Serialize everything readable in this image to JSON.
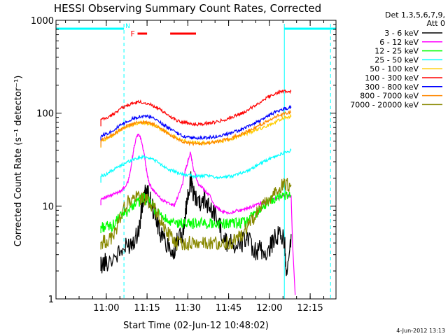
{
  "chart_data": {
    "type": "line",
    "title": "HESSI Observing Summary Count Rates, Corrected",
    "xlabel": "Start Time (02-Jun-12 10:48:02)",
    "ylabel": "Corrected Count Rate (s⁻¹ detector⁻¹)",
    "yscale": "log",
    "ylim": [
      1,
      1000
    ],
    "xlim_minutes": [
      -6.5,
      96.5
    ],
    "x_ticks": [
      {
        "label": "11:00",
        "m": 12
      },
      {
        "label": "11:15",
        "m": 27
      },
      {
        "label": "11:30",
        "m": 42
      },
      {
        "label": "11:45",
        "m": 57
      },
      {
        "label": "12:00",
        "m": 72
      },
      {
        "label": "12:15",
        "m": 87
      }
    ],
    "y_ticks": [
      {
        "label": "1",
        "v": 1
      },
      {
        "label": "10",
        "v": 10
      },
      {
        "label": "100",
        "v": 100
      },
      {
        "label": "1000",
        "v": 1000
      }
    ],
    "legend_header": [
      "Det 1,3,5,6,7,9,",
      "Att 0"
    ],
    "footer_date": "4-Jun-2012 13:13",
    "annotations": {
      "night_label": "N",
      "flare_label": "F",
      "night_color": "#00ffff",
      "flare_color": "#ff0000",
      "night_bars": [
        [
          -6.5,
          18.5
        ],
        [
          77.5,
          96.5
        ]
      ],
      "night_dashed_x": [
        18.5,
        77.5,
        94.5
      ],
      "flare_bars": [
        [
          23.5,
          27
        ],
        [
          35.5,
          45
        ]
      ]
    },
    "series": [
      {
        "name": "3 - 6 keV",
        "color": "#000000",
        "x": [
          10,
          12,
          16,
          19,
          21,
          22.5,
          24,
          25,
          26,
          27,
          28,
          30,
          32,
          34,
          36,
          37,
          38,
          40,
          41,
          42,
          43,
          44,
          46,
          48,
          50,
          52,
          54,
          55,
          56,
          58,
          60,
          62,
          64,
          66,
          68,
          70,
          72,
          74,
          76,
          77.7,
          78.3,
          80
        ],
        "y": [
          2.3,
          2.5,
          3,
          3.5,
          4,
          4.5,
          5.5,
          9,
          13,
          14,
          12,
          8,
          5,
          4,
          3.5,
          3,
          4,
          5,
          8,
          12,
          19,
          14,
          11,
          12,
          10,
          8,
          6,
          4.5,
          4,
          4.5,
          3.5,
          4,
          4.8,
          3,
          3.5,
          3,
          3.5,
          4.5,
          5,
          4,
          1.6,
          5
        ]
      },
      {
        "name": "6 - 12 keV",
        "color": "#ff00ff",
        "x": [
          10,
          12,
          14,
          16,
          18,
          20,
          21,
          22,
          23,
          24,
          25,
          26,
          27,
          28,
          29,
          30,
          32,
          34,
          36,
          37,
          38,
          40,
          41,
          42,
          43,
          44,
          46,
          48,
          50,
          52,
          54,
          56,
          58,
          60,
          62,
          64,
          66,
          68,
          70,
          72,
          74,
          76,
          78,
          80
        ],
        "y": [
          12,
          12.5,
          13,
          14,
          15,
          18,
          25,
          40,
          55,
          60,
          50,
          35,
          22,
          17,
          15,
          14,
          12,
          11,
          10.5,
          10,
          12,
          17,
          24,
          30,
          38,
          25,
          17,
          15,
          13,
          10,
          9,
          8.5,
          8.5,
          9,
          9,
          9.5,
          10,
          10.5,
          11,
          11.5,
          12,
          12.5,
          13,
          13
        ],
        "tail_x": [
          80.5,
          81.5
        ],
        "tail_y": [
          4,
          1.1
        ]
      },
      {
        "name": "12 - 25 keV",
        "color": "#00ff00",
        "x": [
          10,
          12,
          14,
          16,
          18,
          20,
          22,
          24,
          25,
          26,
          27,
          28,
          29,
          30,
          32,
          34,
          36,
          38,
          40,
          42,
          44,
          46,
          48,
          50,
          52,
          54,
          56,
          58,
          60,
          62,
          64,
          66,
          68,
          70,
          72,
          74,
          76,
          78,
          80
        ],
        "y": [
          6,
          6,
          6,
          7,
          8,
          9,
          10.5,
          11,
          12,
          12,
          11.5,
          11,
          10,
          9,
          8,
          7,
          6.5,
          6.5,
          6.5,
          6.5,
          6.5,
          6.5,
          6.5,
          6.5,
          6.5,
          6.5,
          6.5,
          6.5,
          6.5,
          6.5,
          7,
          8,
          9,
          10,
          11,
          12,
          12.5,
          13,
          13
        ]
      },
      {
        "name": "25 - 50 keV",
        "color": "#00ffff",
        "x": [
          10,
          12,
          14,
          16,
          18,
          20,
          22,
          24,
          26,
          28,
          30,
          32,
          34,
          36,
          38,
          40,
          42,
          44,
          46,
          48,
          50,
          52,
          54,
          56,
          58,
          60,
          62,
          64,
          66,
          68,
          70,
          72,
          74,
          76,
          78,
          80
        ],
        "y": [
          21,
          22,
          24,
          26,
          28,
          30,
          32,
          33,
          34,
          33,
          31,
          28,
          26,
          24,
          23,
          22,
          21.5,
          21,
          21,
          21,
          21,
          20.5,
          20.5,
          20.5,
          21,
          22,
          23,
          24,
          26,
          28,
          30,
          32,
          34,
          36,
          38,
          40
        ]
      },
      {
        "name": "50 - 100 keV",
        "color": "#ffcc00",
        "x": [
          10,
          12,
          14,
          16,
          18,
          20,
          22,
          24,
          26,
          28,
          30,
          32,
          34,
          36,
          38,
          40,
          42,
          44,
          46,
          48,
          50,
          52,
          54,
          56,
          58,
          60,
          62,
          64,
          66,
          68,
          70,
          72,
          74,
          76,
          78,
          80
        ],
        "y": [
          50,
          53,
          57,
          63,
          68,
          72,
          76,
          78,
          79,
          77,
          73,
          68,
          63,
          58,
          54,
          51,
          49,
          48,
          48,
          48,
          48,
          49,
          50,
          51,
          53,
          55,
          58,
          61,
          64,
          67,
          71,
          75,
          80,
          86,
          90,
          92
        ]
      },
      {
        "name": "100 - 300 keV",
        "color": "#ff0000",
        "x": [
          10,
          12,
          14,
          16,
          18,
          20,
          22,
          24,
          26,
          28,
          30,
          32,
          34,
          36,
          38,
          40,
          42,
          44,
          46,
          48,
          50,
          52,
          54,
          56,
          58,
          60,
          62,
          64,
          66,
          68,
          70,
          72,
          74,
          76,
          78,
          80
        ],
        "y": [
          85,
          88,
          95,
          105,
          115,
          122,
          128,
          132,
          130,
          125,
          118,
          108,
          98,
          90,
          84,
          80,
          78,
          76,
          76,
          77,
          78,
          80,
          83,
          86,
          90,
          95,
          100,
          108,
          118,
          128,
          140,
          152,
          162,
          170,
          172,
          172
        ]
      },
      {
        "name": "300 - 800 keV",
        "color": "#0000ff",
        "x": [
          10,
          12,
          14,
          16,
          18,
          20,
          22,
          24,
          26,
          28,
          30,
          32,
          34,
          36,
          38,
          40,
          42,
          44,
          46,
          48,
          50,
          52,
          54,
          56,
          58,
          60,
          62,
          64,
          66,
          68,
          70,
          72,
          74,
          76,
          78,
          80
        ],
        "y": [
          57,
          60,
          64,
          70,
          76,
          82,
          88,
          92,
          93,
          91,
          86,
          79,
          72,
          66,
          61,
          57,
          55,
          54,
          54,
          54,
          55,
          56,
          57,
          59,
          61,
          64,
          67,
          71,
          76,
          82,
          88,
          95,
          102,
          108,
          112,
          115
        ]
      },
      {
        "name": "800 - 7000 keV",
        "color": "#ff8800",
        "x": [
          10,
          12,
          14,
          16,
          18,
          20,
          22,
          24,
          26,
          28,
          30,
          32,
          34,
          36,
          38,
          40,
          42,
          44,
          46,
          48,
          50,
          52,
          54,
          56,
          58,
          60,
          62,
          64,
          66,
          68,
          70,
          72,
          74,
          76,
          78,
          80
        ],
        "y": [
          51,
          54,
          58,
          63,
          68,
          73,
          77,
          80,
          80,
          78,
          74,
          68,
          62,
          57,
          53,
          50,
          48,
          47,
          47,
          47,
          48,
          49,
          50,
          52,
          54,
          57,
          60,
          64,
          68,
          73,
          78,
          84,
          90,
          96,
          100,
          102
        ]
      },
      {
        "name": "7000 - 20000 keV",
        "color": "#888800",
        "x": [
          10,
          12,
          14,
          16,
          18,
          20,
          22,
          24,
          26,
          28,
          30,
          32,
          34,
          36,
          38,
          40,
          42,
          44,
          46,
          48,
          50,
          52,
          54,
          56,
          58,
          60,
          62,
          64,
          66,
          68,
          70,
          72,
          74,
          76,
          78,
          80
        ],
        "y": [
          4,
          4.2,
          4.5,
          6,
          9,
          11,
          12,
          12.5,
          12,
          11,
          9,
          7,
          5.5,
          4.5,
          4,
          4,
          4,
          4,
          4,
          4,
          4,
          4,
          4,
          4,
          4,
          4.5,
          5,
          6,
          7,
          9,
          10,
          12,
          14,
          16,
          17,
          17
        ]
      }
    ]
  }
}
